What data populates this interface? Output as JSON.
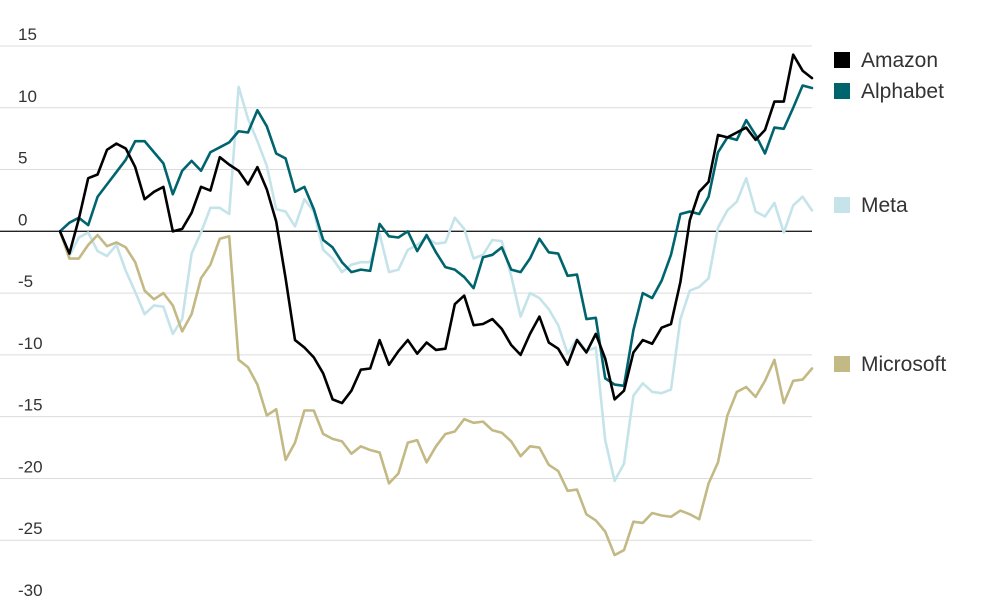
{
  "chart_data": {
    "type": "line",
    "title": "",
    "xlabel": "",
    "ylabel": "",
    "ylim": [
      -30,
      15
    ],
    "yticks": [
      15,
      10,
      5,
      0,
      -5,
      -10,
      -15,
      -20,
      -25,
      -30
    ],
    "grid": true,
    "legend_position": "right",
    "series": [
      {
        "name": "Amazon",
        "color": "#000000",
        "values": [
          0,
          -1.8,
          1,
          4.3,
          4.6,
          6.6,
          7.1,
          6.7,
          5.2,
          2.6,
          3.2,
          3.6,
          0,
          0.2,
          1.5,
          3.6,
          3.3,
          6,
          5.4,
          4.9,
          3.8,
          5.2,
          3.4,
          0.8,
          -3.8,
          -8.8,
          -9.4,
          -10.2,
          -11.5,
          -13.6,
          -13.9,
          -12.9,
          -11.2,
          -11.1,
          -8.8,
          -10.8,
          -9.7,
          -8.8,
          -9.9,
          -9,
          -9.6,
          -9.5,
          -5.9,
          -5.2,
          -7.6,
          -7.5,
          -7.1,
          -7.9,
          -9.2,
          -10,
          -8.3,
          -6.9,
          -9,
          -9.5,
          -10.8,
          -8.8,
          -9.8,
          -8.3,
          -10.3,
          -13.6,
          -12.9,
          -9.8,
          -8.8,
          -9.1,
          -7.8,
          -7.5,
          -4.1,
          0.9,
          3.2,
          4,
          7.8,
          7.6,
          8,
          8.4,
          7.4,
          8.2,
          10.5,
          10.5,
          14.3,
          13,
          12.4
        ]
      },
      {
        "name": "Alphabet",
        "color": "#00646e",
        "values": [
          0,
          0.7,
          1.1,
          0.5,
          2.8,
          3.8,
          4.8,
          5.8,
          7.3,
          7.3,
          6.4,
          5.5,
          3,
          4.9,
          5.7,
          4.9,
          6.4,
          6.8,
          7.2,
          8.1,
          8,
          9.8,
          8.5,
          6.3,
          5.9,
          3.2,
          3.6,
          1.8,
          -0.7,
          -1.3,
          -2.5,
          -3.3,
          -3.1,
          -3.2,
          0.6,
          -0.4,
          -0.5,
          0,
          -1.6,
          -0.3,
          -1.7,
          -2.9,
          -3.1,
          -3.7,
          -4.6,
          -2.1,
          -1.9,
          -1.3,
          -3.1,
          -3.3,
          -2.2,
          -0.6,
          -1.7,
          -1.8,
          -3.6,
          -3.5,
          -7.1,
          -7,
          -11.9,
          -12.4,
          -12.5,
          -8,
          -5,
          -5.4,
          -4,
          -1.9,
          1.4,
          1.6,
          1.4,
          2.8,
          6.4,
          7.6,
          7.4,
          9,
          7.8,
          6.3,
          8.4,
          8.3,
          10,
          11.8,
          11.6
        ]
      },
      {
        "name": "Meta",
        "color": "#c5e4ea",
        "values": [
          0,
          -2,
          -0.5,
          -0.1,
          -1.6,
          -2,
          -1.1,
          -3.2,
          -4.9,
          -6.7,
          -6,
          -6.1,
          -8.3,
          -7.1,
          -1.8,
          -0.1,
          1.9,
          1.9,
          1.4,
          11.7,
          9.1,
          7.3,
          5.3,
          1.8,
          1.6,
          0.4,
          2.6,
          1.6,
          -1.5,
          -2.2,
          -3.3,
          -2.7,
          -2.5,
          -2.5,
          -0.2,
          -3.3,
          -3.1,
          -1.5,
          -1.1,
          -0.5,
          -1,
          -0.9,
          1.1,
          0.2,
          -2.2,
          -1.9,
          -0.7,
          -0.8,
          -3.6,
          -6.9,
          -5,
          -5.4,
          -6.3,
          -7.6,
          -9.9,
          -8.7,
          -9.7,
          -9.4,
          -16.9,
          -20.2,
          -18.8,
          -13.3,
          -12.3,
          -13,
          -13.1,
          -12.8,
          -7.1,
          -4.8,
          -4.5,
          -3.8,
          0.3,
          1.7,
          2.4,
          4.3,
          1.6,
          1.2,
          2.3,
          -0.1,
          2.1,
          2.8,
          1.7
        ]
      },
      {
        "name": "Microsoft",
        "color": "#c3b985",
        "values": [
          0,
          -2.2,
          -2.2,
          -1.1,
          -0.3,
          -1.2,
          -0.9,
          -1.3,
          -2.5,
          -4.8,
          -5.5,
          -5,
          -6,
          -8.1,
          -6.7,
          -3.8,
          -2.7,
          -0.6,
          -0.4,
          -10.4,
          -11,
          -12.4,
          -14.9,
          -14.4,
          -18.5,
          -17.1,
          -14.5,
          -14.5,
          -16.4,
          -16.8,
          -17,
          -18,
          -17.4,
          -17.7,
          -17.9,
          -20.4,
          -19.6,
          -17.1,
          -16.9,
          -18.7,
          -17.4,
          -16.4,
          -16.2,
          -15.2,
          -15.5,
          -15.4,
          -16.1,
          -16.3,
          -17,
          -18.2,
          -17.4,
          -17.5,
          -18.9,
          -19.4,
          -21,
          -20.9,
          -22.9,
          -23.4,
          -24.3,
          -26.2,
          -25.8,
          -23.5,
          -23.6,
          -22.8,
          -23,
          -23.1,
          -22.6,
          -22.9,
          -23.3,
          -20.4,
          -18.7,
          -14.9,
          -13,
          -12.6,
          -13.4,
          -12.1,
          -10.4,
          -13.9,
          -12.1,
          -12,
          -11.1
        ]
      }
    ]
  }
}
